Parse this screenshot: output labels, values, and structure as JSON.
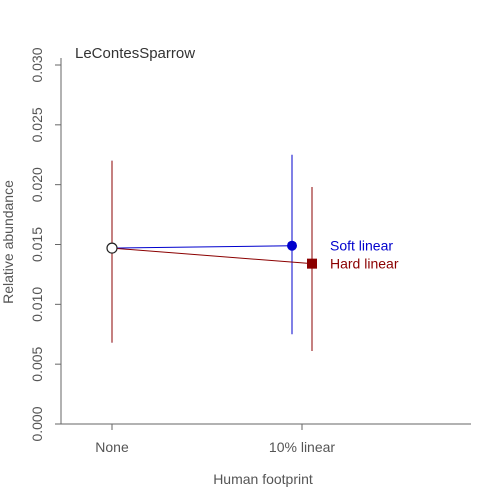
{
  "chart_data": {
    "type": "scatter",
    "title": "LeContesSparrow",
    "xlabel": "Human footprint",
    "ylabel": "Relative abundance",
    "categories": [
      "None",
      "10% linear"
    ],
    "ylim": [
      0,
      0.03
    ],
    "yticks": [
      "0.000",
      "0.005",
      "0.010",
      "0.015",
      "0.020",
      "0.025",
      "0.030"
    ],
    "baseline": {
      "category": "None",
      "value": 0.0147,
      "lower": 0.0068,
      "upper": 0.022
    },
    "series": [
      {
        "name": "Soft linear",
        "color": "#0000cd",
        "marker": "circle",
        "category": "10% linear",
        "value": 0.0149,
        "lower": 0.0075,
        "upper": 0.0225
      },
      {
        "name": "Hard linear",
        "color": "#8b0000",
        "marker": "square",
        "category": "10% linear",
        "value": 0.0134,
        "lower": 0.0061,
        "upper": 0.0198
      }
    ]
  }
}
